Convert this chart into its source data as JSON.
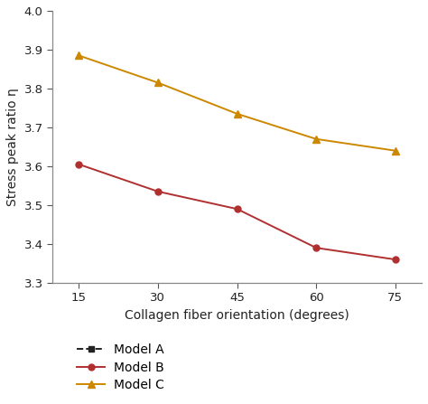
{
  "x": [
    15,
    30,
    45,
    60,
    75
  ],
  "model_b": [
    3.605,
    3.535,
    3.49,
    3.39,
    3.36
  ],
  "model_c": [
    3.885,
    3.815,
    3.735,
    3.67,
    3.64
  ],
  "color_a": "#222222",
  "color_b": "#b03030",
  "color_c": "#cc8800",
  "xlabel": "Collagen fiber orientation (degrees)",
  "ylabel": "Stress peak ratio η",
  "ylim": [
    3.3,
    4.0
  ],
  "xlim": [
    10,
    80
  ],
  "xticks": [
    15,
    30,
    45,
    60,
    75
  ],
  "yticks": [
    3.3,
    3.4,
    3.5,
    3.6,
    3.7,
    3.8,
    3.9,
    4.0
  ],
  "legend_labels": [
    "Model A",
    "Model B",
    "Model C"
  ],
  "background_color": "#ffffff",
  "figsize": [
    4.74,
    4.47
  ],
  "dpi": 100
}
